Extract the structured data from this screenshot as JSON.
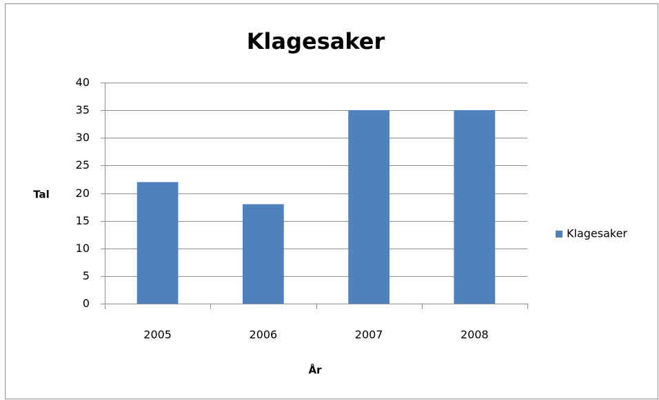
{
  "chart_data": {
    "type": "bar",
    "title": "Klagesaker",
    "x_label": "År",
    "y_label": "Tal",
    "categories": [
      "2005",
      "2006",
      "2007",
      "2008"
    ],
    "series": [
      {
        "name": "Klagesaker",
        "color": "#4f81bd",
        "values": [
          22,
          18,
          35,
          35
        ]
      }
    ],
    "ylim": [
      0,
      40
    ],
    "yticks": [
      0,
      5,
      10,
      15,
      20,
      25,
      30,
      35,
      40
    ],
    "grid": true,
    "legend": "right"
  }
}
